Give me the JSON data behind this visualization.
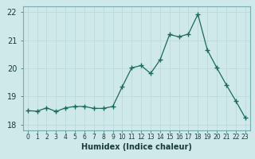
{
  "x": [
    0,
    1,
    2,
    3,
    4,
    5,
    6,
    7,
    8,
    9,
    10,
    11,
    12,
    13,
    14,
    15,
    16,
    17,
    18,
    19,
    20,
    21,
    22,
    23
  ],
  "y": [
    18.5,
    18.48,
    18.6,
    18.47,
    18.6,
    18.65,
    18.65,
    18.58,
    18.58,
    18.65,
    19.35,
    20.02,
    20.1,
    19.82,
    20.3,
    21.2,
    21.12,
    21.22,
    21.92,
    20.65,
    20.02,
    19.42,
    18.85,
    18.25
  ],
  "xlabel": "Humidex (Indice chaleur)",
  "ylim": [
    17.8,
    22.2
  ],
  "xlim": [
    -0.5,
    23.5
  ],
  "yticks": [
    18,
    19,
    20,
    21,
    22
  ],
  "line_color": "#1a6b5a",
  "marker": "+",
  "marker_size": 4,
  "bg_color": "#cfe8ea",
  "grid_color": "#b8d8da",
  "axis_bg": "#cfe8ea",
  "tick_color": "#1a6b5a",
  "xlabel_fontsize": 7,
  "ytick_fontsize": 7,
  "xtick_fontsize": 5.5
}
